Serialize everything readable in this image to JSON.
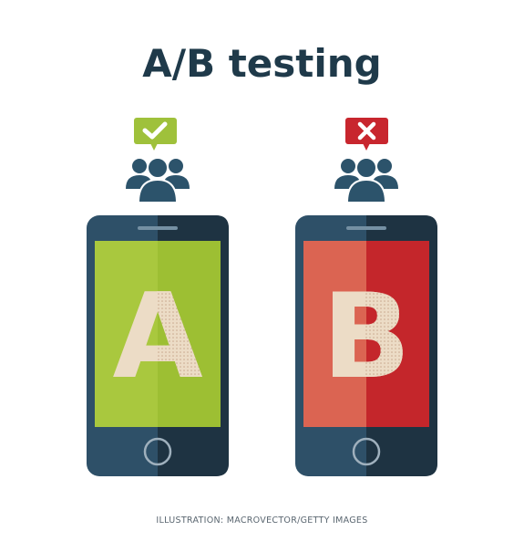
{
  "title": "A/B testing",
  "credit": "ILLUSTRATION: MACROVECTOR/GETTY IMAGES",
  "colors": {
    "title": "#1f3a4a",
    "credit": "#5a6670",
    "phone_body_dark": "#1e3342",
    "phone_body_light": "#2e5068",
    "people": "#2c536b",
    "approve_green": "#9fc13b",
    "reject_red": "#c8262e",
    "screen_a_light": "#a9c83e",
    "screen_a_dark": "#9dbf33",
    "screen_b_light": "#db6452",
    "screen_b_dark": "#c4262b",
    "letter_fill": "#ecdcc6"
  },
  "variants": [
    {
      "letter": "A",
      "feedback_icon": "checkmark-icon",
      "people_icon": "people-group-icon"
    },
    {
      "letter": "B",
      "feedback_icon": "x-mark-icon",
      "people_icon": "people-group-icon"
    }
  ]
}
